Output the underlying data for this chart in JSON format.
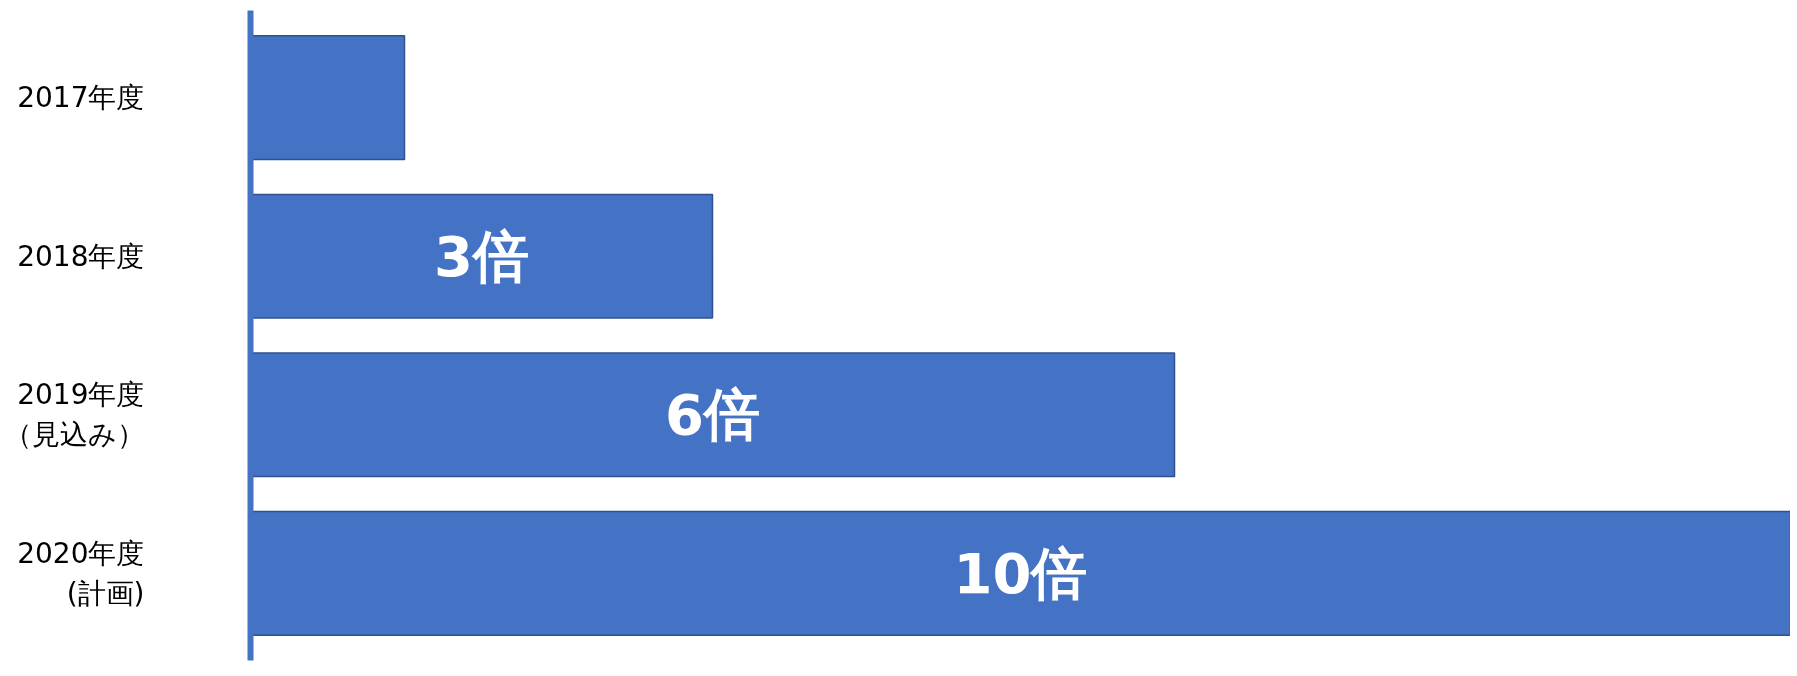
{
  "chart_data": {
    "type": "bar",
    "orientation": "horizontal",
    "categories": [
      "2017年度",
      "2018年度",
      "2019年度（見込み）",
      "2020年度(計画)"
    ],
    "values": [
      1,
      3,
      6,
      10
    ],
    "value_labels": [
      null,
      "3倍",
      "6倍",
      "10倍"
    ],
    "xlim": [
      0,
      10
    ],
    "tick_labels": "y",
    "color": "#4472c4",
    "grid": false
  }
}
